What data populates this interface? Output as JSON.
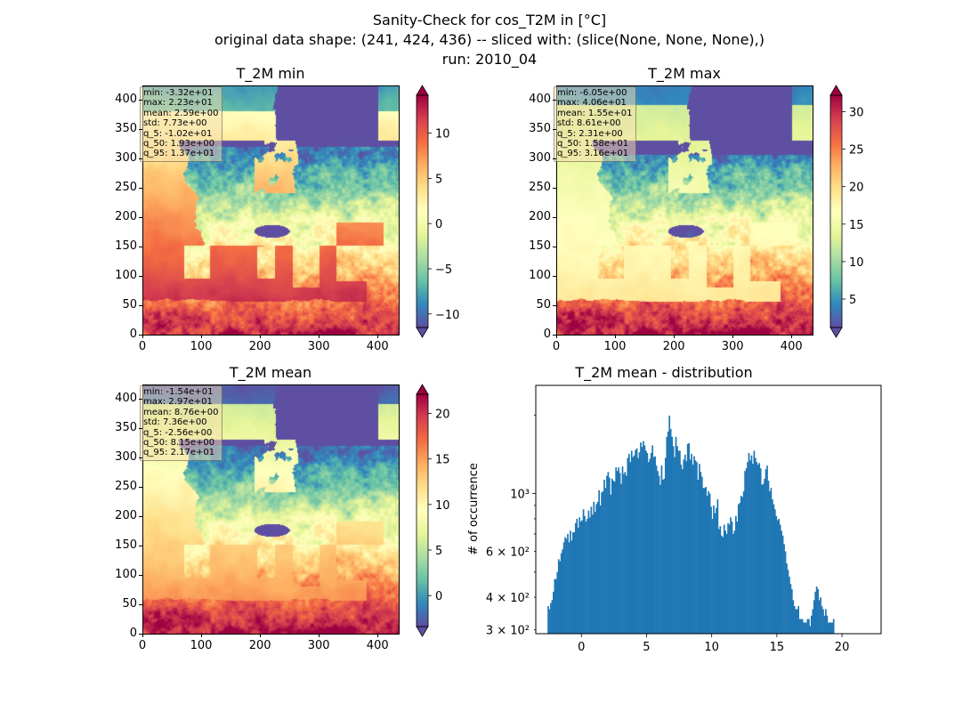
{
  "suptitle": {
    "line1": "Sanity-Check for cos_T2M in [°C]",
    "line2": "original data shape: (241, 424, 436) -- sliced with: (slice(None, None, None),)",
    "line3": "run: 2010_04"
  },
  "panels": {
    "min": {
      "title": "T_2M min",
      "stats": [
        "min: -3.32e+01",
        "max: 2.23e+01",
        "mean: 2.59e+00",
        "std: 7.73e+00",
        "q_5: -1.02e+01",
        "q_50: 1.93e+00",
        "q_95: 1.37e+01"
      ],
      "colorbar": {
        "vmin": -11.5,
        "vmax": 14.2,
        "ticks": [
          -10,
          -5,
          0,
          5,
          10
        ],
        "extend": "both"
      }
    },
    "max": {
      "title": "T_2M max",
      "stats": [
        "min: -6.05e+00",
        "max: 4.06e+01",
        "mean: 1.55e+01",
        "std: 8.61e+00",
        "q_5: 2.31e+00",
        "q_50: 1.58e+01",
        "q_95: 3.16e+01"
      ],
      "colorbar": {
        "vmin": 1.2,
        "vmax": 32.2,
        "ticks": [
          5,
          10,
          15,
          20,
          25,
          30
        ],
        "extend": "both"
      }
    },
    "mean": {
      "title": "T_2M mean",
      "stats": [
        "min: -1.54e+01",
        "max: 2.97e+01",
        "mean: 8.76e+00",
        "std: 7.36e+00",
        "q_5: -2.56e+00",
        "q_50: 8.15e+00",
        "q_95: 2.17e+01"
      ],
      "colorbar": {
        "vmin": -3.4,
        "vmax": 22.1,
        "ticks": [
          0,
          5,
          10,
          15,
          20
        ],
        "extend": "both"
      }
    }
  },
  "map_axes": {
    "x_ticks": [
      0,
      100,
      200,
      300,
      400
    ],
    "y_ticks": [
      0,
      50,
      100,
      150,
      200,
      250,
      300,
      350,
      400
    ],
    "xlim": [
      0,
      436
    ],
    "ylim": [
      0,
      424
    ]
  },
  "colormap": "Spectral_r",
  "chart_data": {
    "type": "bar",
    "title": "T_2M mean - distribution",
    "xlabel": "",
    "ylabel": "# of occurrence",
    "y_scale": "log",
    "xlim": [
      -3.5,
      23
    ],
    "ylim": [
      290,
      2600
    ],
    "x_ticks": [
      0,
      5,
      10,
      15,
      20
    ],
    "y_tick_labels": [
      {
        "value": 300,
        "label": "3 × 10²"
      },
      {
        "value": 400,
        "label": "4 × 10²"
      },
      {
        "value": 600,
        "label": "6 × 10²"
      },
      {
        "value": 1000,
        "label": "10³"
      }
    ],
    "bar_color": "#1f77b4",
    "bin_start": -2.6,
    "bin_width": 0.1,
    "series": [
      {
        "values": [
          370,
          360,
          380,
          390,
          420,
          470,
          470,
          500,
          560,
          550,
          590,
          610,
          650,
          680,
          670,
          700,
          650,
          720,
          660,
          710,
          710,
          770,
          800,
          740,
          810,
          780,
          790,
          870,
          820,
          780,
          800,
          860,
          810,
          890,
          830,
          930,
          850,
          910,
          930,
          1030,
          900,
          1010,
          1020,
          1130,
          1050,
          1170,
          1210,
          1150,
          990,
          1140,
          1120,
          1110,
          1260,
          1220,
          1260,
          1200,
          1090,
          1270,
          1190,
          1210,
          1170,
          1370,
          1420,
          1320,
          1460,
          1380,
          1400,
          1470,
          1490,
          1370,
          1440,
          1570,
          1510,
          1590,
          1530,
          1460,
          1430,
          1320,
          1360,
          1430,
          1530,
          1380,
          1390,
          1280,
          1220,
          1170,
          1080,
          1280,
          1130,
          1140,
          1370,
          1650,
          1730,
          1990,
          1770,
          1650,
          1520,
          1380,
          1650,
          1520,
          1460,
          1460,
          1290,
          1240,
          1350,
          1410,
          1330,
          1550,
          1560,
          1350,
          1420,
          1290,
          1390,
          1340,
          1320,
          1130,
          1300,
          1210,
          1160,
          1050,
          1050,
          1060,
          980,
          1020,
          1000,
          890,
          800,
          900,
          840,
          880,
          950,
          730,
          750,
          690,
          680,
          760,
          720,
          700,
          770,
          760,
          810,
          780,
          700,
          720,
          820,
          780,
          910,
          920,
          980,
          970,
          1020,
          1220,
          1250,
          1320,
          1430,
          1340,
          1400,
          1300,
          1460,
          1370,
          1320,
          1290,
          1310,
          1250,
          1080,
          1090,
          1140,
          1240,
          1280,
          1120,
          1020,
          1050,
          950,
          910,
          870,
          820,
          790,
          800,
          760,
          720,
          690,
          640,
          600,
          540,
          510,
          480,
          450,
          430,
          390,
          370,
          360,
          360,
          370,
          330,
          330,
          330,
          320,
          320,
          320,
          330,
          330,
          310,
          340,
          360,
          390,
          420,
          440,
          430,
          390,
          400,
          370,
          360,
          340,
          360,
          340,
          320,
          320,
          320,
          320,
          330
        ]
      }
    ]
  }
}
